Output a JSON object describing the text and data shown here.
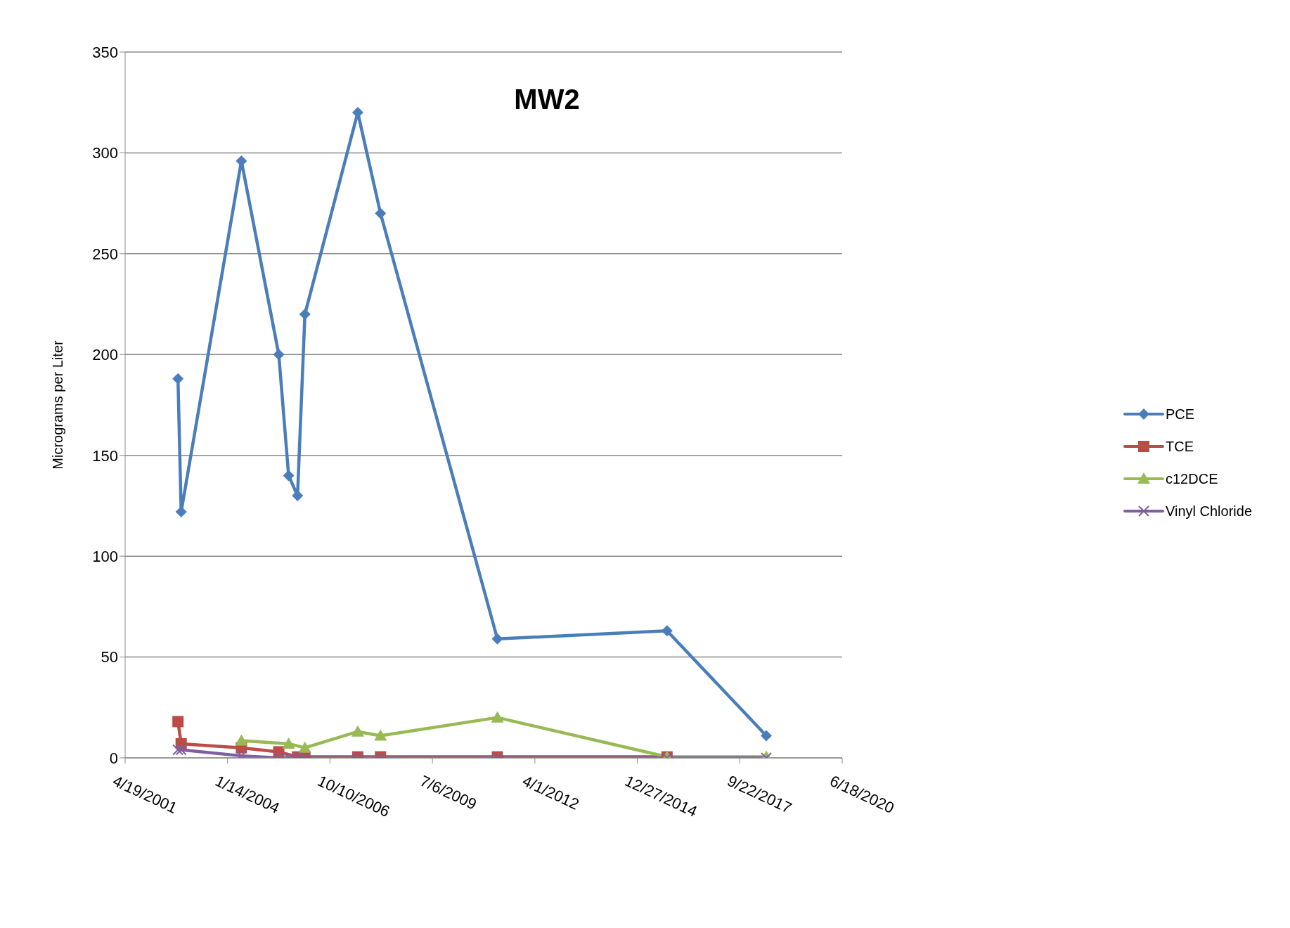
{
  "chart_data": {
    "type": "line",
    "title": "MW2",
    "ylabel": "Micrograms per Liter",
    "x": [
      "2002-09-17",
      "2002-10-18",
      "2004-05-28",
      "2005-05-28",
      "2005-09-01",
      "2005-11-27",
      "2006-02-07",
      "2007-07-08",
      "2008-02-15",
      "2011-04-01",
      "2015-10-13",
      "2018-06-08"
    ],
    "series": [
      {
        "name": "PCE",
        "color": "#4a7ebb",
        "marker": "diamond",
        "values": [
          188,
          122,
          296,
          200,
          140,
          130,
          220,
          320,
          270,
          59,
          63,
          11
        ]
      },
      {
        "name": "TCE",
        "color": "#be4b48",
        "marker": "square",
        "values": [
          18,
          7,
          5,
          3,
          null,
          0.5,
          0.5,
          0.5,
          0.5,
          0.5,
          0.5,
          null
        ]
      },
      {
        "name": "c12DCE",
        "color": "#98b954",
        "marker": "triangle",
        "values": [
          null,
          null,
          8.5,
          null,
          7,
          null,
          5,
          13,
          11,
          20,
          0.5,
          0.5
        ]
      },
      {
        "name": "Vinyl Chloride",
        "color": "#7d60a0",
        "marker": "cross",
        "values": [
          4,
          4,
          1,
          0,
          0,
          0,
          0,
          0,
          0,
          0,
          0,
          0
        ]
      }
    ],
    "xlim": [
      "2001-04-19",
      "2020-06-18"
    ],
    "xticks": [
      {
        "value": "2001-04-19",
        "label": "4/19/2001"
      },
      {
        "value": "2004-01-14",
        "label": "1/14/2004"
      },
      {
        "value": "2006-10-10",
        "label": "10/10/2006"
      },
      {
        "value": "2009-07-06",
        "label": "7/6/2009"
      },
      {
        "value": "2012-04-01",
        "label": "4/1/2012"
      },
      {
        "value": "2014-12-27",
        "label": "12/27/2014"
      },
      {
        "value": "2017-09-22",
        "label": "9/22/2017"
      },
      {
        "value": "2020-06-18",
        "label": "6/18/2020"
      }
    ],
    "ylim": [
      0,
      350
    ],
    "yticks": [
      0,
      50,
      100,
      150,
      200,
      250,
      300,
      350
    ],
    "grid": "y",
    "legend": "right",
    "line_style": "solid"
  }
}
